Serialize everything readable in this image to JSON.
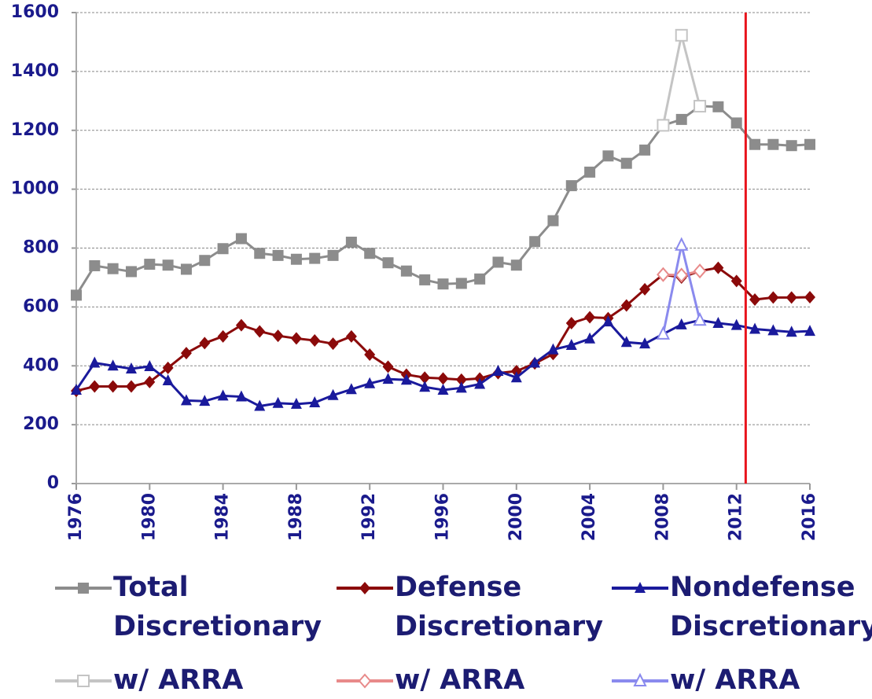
{
  "chart_data": {
    "type": "line",
    "x": [
      1976,
      1977,
      1978,
      1979,
      1980,
      1981,
      1982,
      1983,
      1984,
      1985,
      1986,
      1987,
      1988,
      1989,
      1990,
      1991,
      1992,
      1993,
      1994,
      1995,
      1996,
      1997,
      1998,
      1999,
      2000,
      2001,
      2002,
      2003,
      2004,
      2005,
      2006,
      2007,
      2008,
      2009,
      2010,
      2011,
      2012,
      2013,
      2014,
      2015,
      2016
    ],
    "series": [
      {
        "name": "Total Discretionary",
        "color": "#8c8c8c",
        "marker": "square",
        "values": [
          640,
          740,
          730,
          720,
          745,
          742,
          728,
          758,
          798,
          832,
          782,
          775,
          762,
          765,
          775,
          820,
          782,
          750,
          722,
          692,
          678,
          680,
          695,
          752,
          742,
          822,
          893,
          1012,
          1058,
          1113,
          1088,
          1133,
          1217,
          1237,
          1282,
          1280,
          1225,
          1152,
          1152,
          1148,
          1152
        ]
      },
      {
        "name": "Defense Discretionary",
        "color": "#8b0a0a",
        "marker": "diamond",
        "values": [
          315,
          330,
          330,
          330,
          345,
          393,
          443,
          477,
          500,
          538,
          517,
          502,
          493,
          486,
          475,
          500,
          438,
          397,
          370,
          360,
          357,
          353,
          357,
          375,
          382,
          408,
          440,
          545,
          565,
          562,
          605,
          660,
          710,
          700,
          722,
          733,
          688,
          625,
          632,
          632,
          633
        ]
      },
      {
        "name": "Nondefense Discretionary",
        "color": "#1a1a9c",
        "marker": "triangle",
        "values": [
          318,
          410,
          400,
          390,
          398,
          350,
          282,
          280,
          298,
          295,
          263,
          273,
          270,
          275,
          300,
          320,
          340,
          355,
          352,
          328,
          318,
          325,
          338,
          382,
          360,
          410,
          455,
          470,
          492,
          550,
          480,
          475,
          508,
          540,
          555,
          545,
          538,
          525,
          520,
          515,
          518
        ]
      },
      {
        "name": "w/ ARRA",
        "color": "#c4c4c4",
        "marker": "open-square",
        "values": [
          null,
          null,
          null,
          null,
          null,
          null,
          null,
          null,
          null,
          null,
          null,
          null,
          null,
          null,
          null,
          null,
          null,
          null,
          null,
          null,
          null,
          null,
          null,
          null,
          null,
          null,
          null,
          null,
          null,
          null,
          null,
          null,
          1217,
          1523,
          1282,
          null,
          null,
          null,
          null,
          null,
          null
        ]
      },
      {
        "name": "w/ ARRA",
        "color": "#e88a8a",
        "marker": "open-diamond",
        "values": [
          null,
          null,
          null,
          null,
          null,
          null,
          null,
          null,
          null,
          null,
          null,
          null,
          null,
          null,
          null,
          null,
          null,
          null,
          null,
          null,
          null,
          null,
          null,
          null,
          null,
          null,
          null,
          null,
          null,
          null,
          null,
          null,
          710,
          708,
          722,
          null,
          null,
          null,
          null,
          null,
          null
        ]
      },
      {
        "name": "w/ ARRA",
        "color": "#8a8aee",
        "marker": "open-triangle",
        "values": [
          null,
          null,
          null,
          null,
          null,
          null,
          null,
          null,
          null,
          null,
          null,
          null,
          null,
          null,
          null,
          null,
          null,
          null,
          null,
          null,
          null,
          null,
          null,
          null,
          null,
          null,
          null,
          null,
          null,
          null,
          null,
          null,
          508,
          810,
          555,
          null,
          null,
          null,
          null,
          null,
          null
        ]
      }
    ],
    "xlim": [
      1976,
      2016
    ],
    "xticks": [
      1976,
      1980,
      1984,
      1988,
      1992,
      1996,
      2000,
      2004,
      2008,
      2012,
      2016
    ],
    "ylim": [
      0,
      1600
    ],
    "yticks": [
      0,
      200,
      400,
      600,
      800,
      1000,
      1200,
      1400,
      1600
    ],
    "grid": true,
    "vline": {
      "x": 2012.5,
      "color": "#e8141c"
    }
  }
}
